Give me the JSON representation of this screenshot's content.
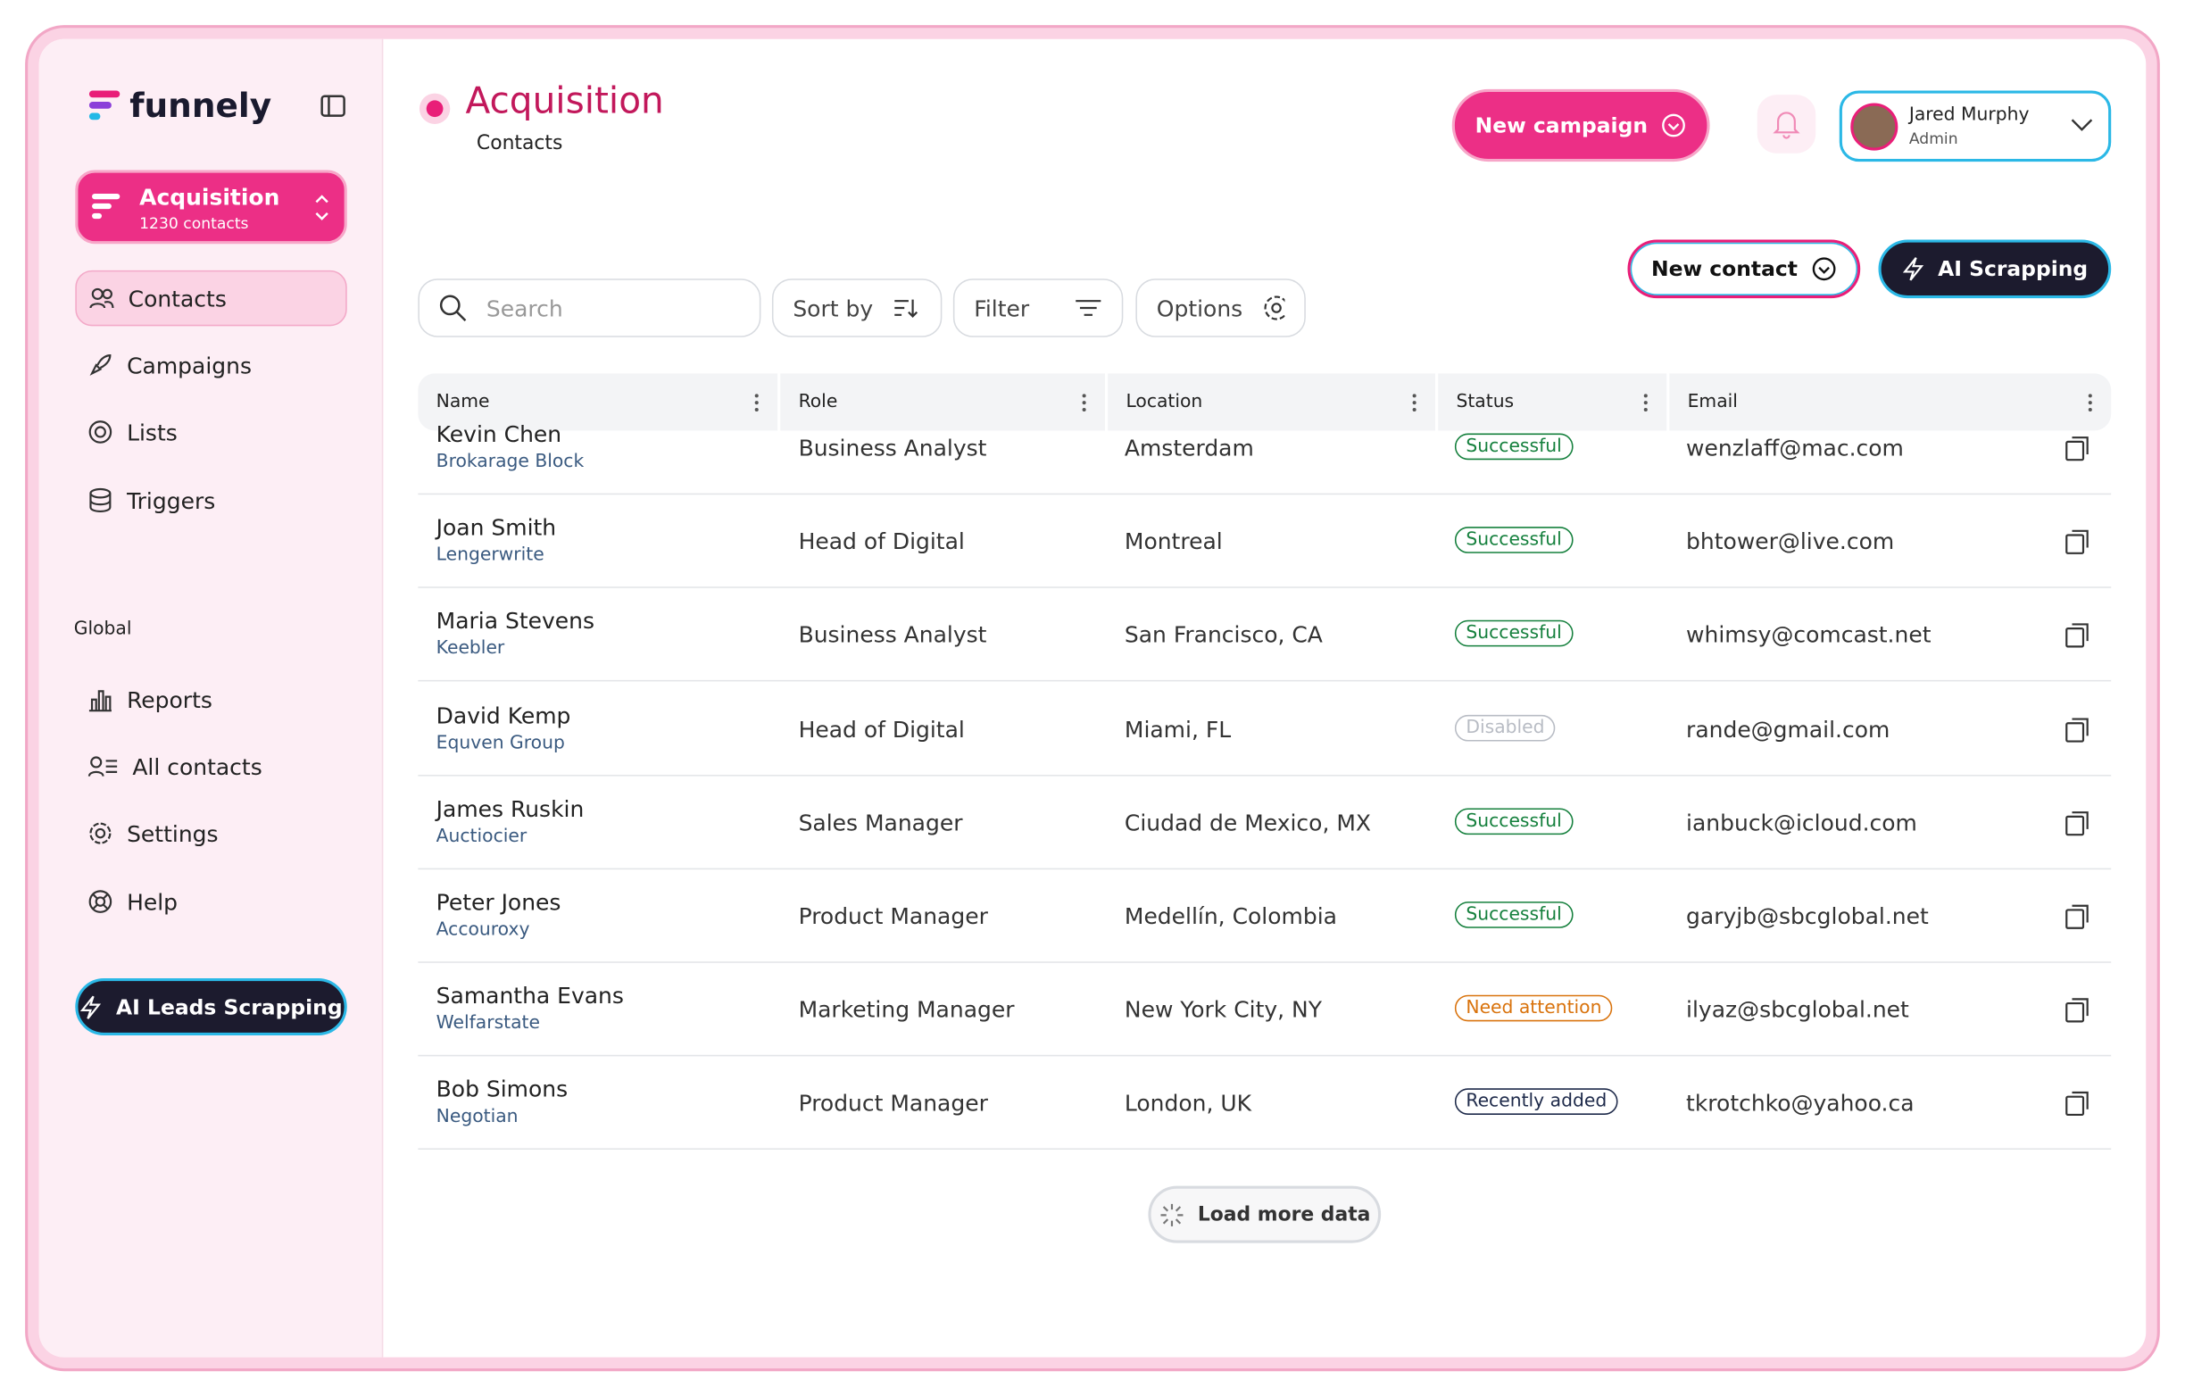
{
  "brand": "funnely",
  "workspace": {
    "name": "Acquisition",
    "count": "1230 contacts"
  },
  "nav": [
    "Contacts",
    "Campaigns",
    "Lists",
    "Triggers"
  ],
  "global_label": "Global",
  "global_nav": [
    "Reports",
    "All contacts",
    "Settings",
    "Help"
  ],
  "sidebar_cta": "AI Leads Scrapping",
  "header": {
    "title": "Acquisition",
    "subtitle": "Contacts",
    "new_campaign": "New campaign",
    "user": {
      "name": "Jared Murphy",
      "role": "Admin"
    }
  },
  "toolbar": {
    "search": "Search",
    "sort": "Sort by",
    "filter": "Filter",
    "options": "Options",
    "new_contact": "New contact",
    "ai": "AI Scrapping"
  },
  "table": {
    "columns": [
      "Name",
      "Role",
      "Location",
      "Status",
      "Email"
    ],
    "rows": [
      {
        "name": "Kevin Chen",
        "company": "Brokarage Block",
        "role": "Business Analyst",
        "location": "Amsterdam",
        "status": "Successful",
        "status_color": "#15803d",
        "email": "wenzlaff@mac.com"
      },
      {
        "name": "Joan Smith",
        "company": "Lengerwrite",
        "role": "Head of Digital",
        "location": "Montreal",
        "status": "Successful",
        "status_color": "#15803d",
        "email": "bhtower@live.com"
      },
      {
        "name": "Maria Stevens",
        "company": "Keebler",
        "role": "Business Analyst",
        "location": "San Francisco, CA",
        "status": "Successful",
        "status_color": "#15803d",
        "email": "whimsy@comcast.net"
      },
      {
        "name": "David Kemp",
        "company": "Equven Group",
        "role": "Head of Digital",
        "location": "Miami, FL",
        "status": "Disabled",
        "status_color": "#b8bcc4",
        "email": "rande@gmail.com"
      },
      {
        "name": "James Ruskin",
        "company": "Auctiocier",
        "role": "Sales Manager",
        "location": "Ciudad de Mexico, MX",
        "status": "Successful",
        "status_color": "#15803d",
        "email": "ianbuck@icloud.com"
      },
      {
        "name": "Peter Jones",
        "company": "Accouroxy",
        "role": "Product Manager",
        "location": "Medellín, Colombia",
        "status": "Successful",
        "status_color": "#15803d",
        "email": "garyjb@sbcglobal.net"
      },
      {
        "name": "Samantha Evans",
        "company": "Welfarstate",
        "role": "Marketing Manager",
        "location": "New York City, NY",
        "status": "Need attention",
        "status_color": "#d9730d",
        "email": "ilyaz@sbcglobal.net"
      },
      {
        "name": "Bob Simons",
        "company": "Negotian",
        "role": "Product Manager",
        "location": "London, UK",
        "status": "Recently added",
        "status_color": "#1e2a4a",
        "email": "tkrotchko@yahoo.ca"
      }
    ]
  },
  "load_more": "Load more data"
}
